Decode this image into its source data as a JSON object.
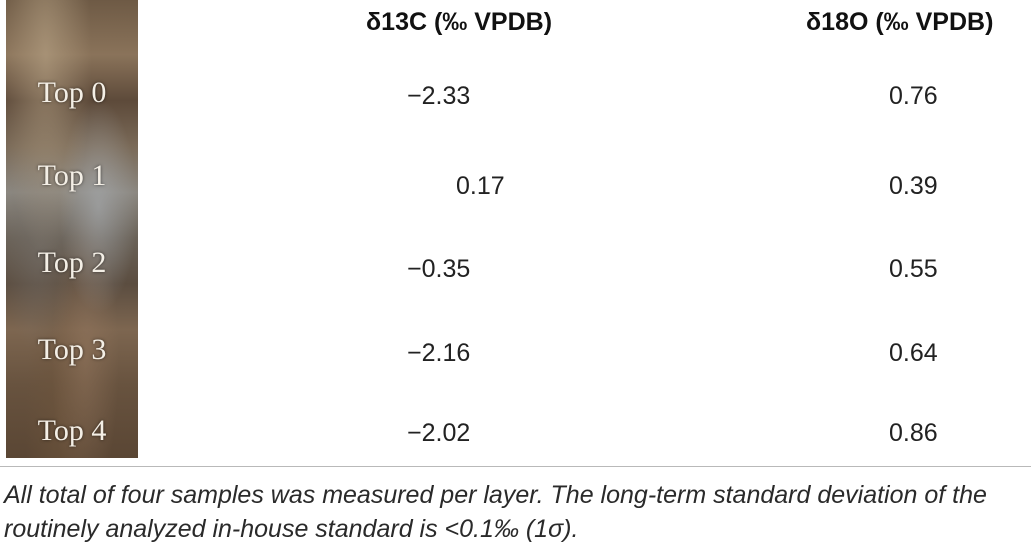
{
  "table": {
    "columns": [
      "δ13C (‰ VPDB)",
      "δ18O (‰ VPDB)"
    ],
    "rows": [
      {
        "label": "Top 0",
        "d13c": "−2.33",
        "d18o": "0.76"
      },
      {
        "label": "Top 1",
        "d13c": "0.17",
        "d18o": "0.39"
      },
      {
        "label": "Top 2",
        "d13c": "−0.35",
        "d18o": "0.55"
      },
      {
        "label": "Top 3",
        "d13c": "−2.16",
        "d18o": "0.64"
      },
      {
        "label": "Top 4",
        "d13c": "−2.02",
        "d18o": "0.86"
      }
    ]
  },
  "footnote": "All total of four samples was measured per layer. The long-term standard deviation of the routinely analyzed in-house standard is <0.1‰ (1σ)."
}
